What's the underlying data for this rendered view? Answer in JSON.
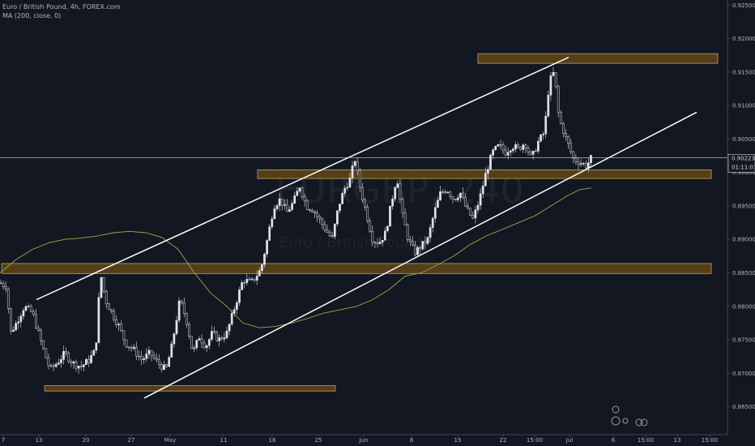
{
  "header": {
    "title": "Euro / British Pound, 4h, FOREX.com",
    "indicator": "MA (200, close, 0)"
  },
  "watermark": {
    "symbol": "EURGBP, 240",
    "name": "Euro / British Pound"
  },
  "current": {
    "price": "0.90223",
    "countdown": "01:11:07"
  },
  "colors": {
    "background": "#131722",
    "candle": "#e0e3eb",
    "ma": "#8fb049",
    "zone_fill": "#5c4418",
    "zone_border": "#c9a05a",
    "trendline": "#ffffff",
    "axis_text": "#b2b5be"
  },
  "chart_data": {
    "type": "candlestick",
    "title": "Euro / British Pound, 4h, FOREX.com",
    "timeframe": "4h",
    "ylim": [
      0.8635,
      0.9254
    ],
    "y_ticks": [
      "0.92500",
      "0.92000",
      "0.91500",
      "0.91000",
      "0.90500",
      "0.90000",
      "0.89500",
      "0.89000",
      "0.88500",
      "0.88000",
      "0.87500",
      "0.87000",
      "0.86500"
    ],
    "x_ticks": [
      "7",
      "13",
      "20",
      "27",
      "May",
      "11",
      "18",
      "25",
      "Jun",
      "8",
      "15",
      "22",
      "15:00",
      "Jul",
      "6",
      "15:00",
      "13",
      "15:00"
    ],
    "close_path": [
      [
        0,
        0.8835
      ],
      [
        8,
        0.883
      ],
      [
        13,
        0.876
      ],
      [
        20,
        0.8775
      ],
      [
        30,
        0.88
      ],
      [
        40,
        0.879
      ],
      [
        55,
        0.873
      ],
      [
        62,
        0.8705
      ],
      [
        70,
        0.8715
      ],
      [
        80,
        0.873
      ],
      [
        90,
        0.8715
      ],
      [
        100,
        0.871
      ],
      [
        110,
        0.872
      ],
      [
        118,
        0.8735
      ],
      [
        124,
        0.885
      ],
      [
        130,
        0.881
      ],
      [
        138,
        0.879
      ],
      [
        147,
        0.877
      ],
      [
        155,
        0.8745
      ],
      [
        165,
        0.8735
      ],
      [
        175,
        0.872
      ],
      [
        185,
        0.873
      ],
      [
        195,
        0.8715
      ],
      [
        205,
        0.8705
      ],
      [
        212,
        0.874
      ],
      [
        222,
        0.881
      ],
      [
        230,
        0.878
      ],
      [
        238,
        0.873
      ],
      [
        246,
        0.8755
      ],
      [
        254,
        0.874
      ],
      [
        262,
        0.876
      ],
      [
        270,
        0.875
      ],
      [
        280,
        0.876
      ],
      [
        290,
        0.88
      ],
      [
        300,
        0.884
      ],
      [
        310,
        0.8835
      ],
      [
        322,
        0.8855
      ],
      [
        330,
        0.89
      ],
      [
        338,
        0.895
      ],
      [
        346,
        0.896
      ],
      [
        354,
        0.894
      ],
      [
        362,
        0.8955
      ],
      [
        370,
        0.898
      ],
      [
        378,
        0.895
      ],
      [
        386,
        0.8945
      ],
      [
        394,
        0.893
      ],
      [
        402,
        0.8915
      ],
      [
        410,
        0.89
      ],
      [
        418,
        0.895
      ],
      [
        425,
        0.8975
      ],
      [
        432,
        0.899
      ],
      [
        438,
        0.902
      ],
      [
        444,
        0.898
      ],
      [
        452,
        0.894
      ],
      [
        460,
        0.89
      ],
      [
        468,
        0.8895
      ],
      [
        476,
        0.891
      ],
      [
        484,
        0.896
      ],
      [
        490,
        0.8995
      ],
      [
        496,
        0.894
      ],
      [
        504,
        0.89
      ],
      [
        512,
        0.888
      ],
      [
        520,
        0.889
      ],
      [
        528,
        0.89
      ],
      [
        536,
        0.894
      ],
      [
        544,
        0.897
      ],
      [
        552,
        0.8975
      ],
      [
        560,
        0.896
      ],
      [
        568,
        0.897
      ],
      [
        576,
        0.8945
      ],
      [
        584,
        0.893
      ],
      [
        592,
        0.896
      ],
      [
        600,
        0.9
      ],
      [
        608,
        0.903
      ],
      [
        616,
        0.904
      ],
      [
        624,
        0.903
      ],
      [
        632,
        0.904
      ],
      [
        640,
        0.9035
      ],
      [
        648,
        0.9045
      ],
      [
        656,
        0.902
      ],
      [
        664,
        0.9045
      ],
      [
        672,
        0.906
      ],
      [
        678,
        0.9135
      ],
      [
        684,
        0.915
      ],
      [
        690,
        0.908
      ],
      [
        696,
        0.906
      ],
      [
        702,
        0.904
      ],
      [
        708,
        0.902
      ],
      [
        716,
        0.9015
      ],
      [
        724,
        0.901
      ],
      [
        730,
        0.9022
      ]
    ],
    "ma_path": [
      [
        0,
        0.885
      ],
      [
        20,
        0.887
      ],
      [
        40,
        0.8885
      ],
      [
        60,
        0.8895
      ],
      [
        80,
        0.89
      ],
      [
        100,
        0.8902
      ],
      [
        120,
        0.8905
      ],
      [
        140,
        0.891
      ],
      [
        160,
        0.8912
      ],
      [
        180,
        0.891
      ],
      [
        200,
        0.8903
      ],
      [
        220,
        0.8885
      ],
      [
        240,
        0.885
      ],
      [
        260,
        0.882
      ],
      [
        280,
        0.88
      ],
      [
        300,
        0.8775
      ],
      [
        320,
        0.8768
      ],
      [
        340,
        0.877
      ],
      [
        360,
        0.8775
      ],
      [
        380,
        0.8782
      ],
      [
        400,
        0.879
      ],
      [
        420,
        0.8795
      ],
      [
        440,
        0.88
      ],
      [
        460,
        0.881
      ],
      [
        480,
        0.8825
      ],
      [
        500,
        0.8845
      ],
      [
        520,
        0.885
      ],
      [
        540,
        0.8862
      ],
      [
        560,
        0.8875
      ],
      [
        580,
        0.8892
      ],
      [
        600,
        0.8905
      ],
      [
        620,
        0.8915
      ],
      [
        640,
        0.8925
      ],
      [
        660,
        0.8935
      ],
      [
        680,
        0.895
      ],
      [
        700,
        0.8965
      ],
      [
        715,
        0.8974
      ],
      [
        730,
        0.8977
      ]
    ],
    "zones": [
      {
        "x1": 590,
        "x2": 886,
        "top": 0.91775,
        "bottom": 0.9163
      },
      {
        "x1": 318,
        "x2": 878,
        "top": 0.9004,
        "bottom": 0.8991
      },
      {
        "x1": 2,
        "x2": 878,
        "top": 0.8864,
        "bottom": 0.8849
      },
      {
        "x1": 55,
        "x2": 414,
        "top": 0.86815,
        "bottom": 0.86735
      }
    ],
    "trendlines": [
      {
        "x1": 45,
        "y1": 0.881,
        "x2": 702,
        "y2": 0.9172
      },
      {
        "x1": 178,
        "y1": 0.8663,
        "x2": 860,
        "y2": 0.909
      }
    ],
    "current_price": 0.90223
  }
}
